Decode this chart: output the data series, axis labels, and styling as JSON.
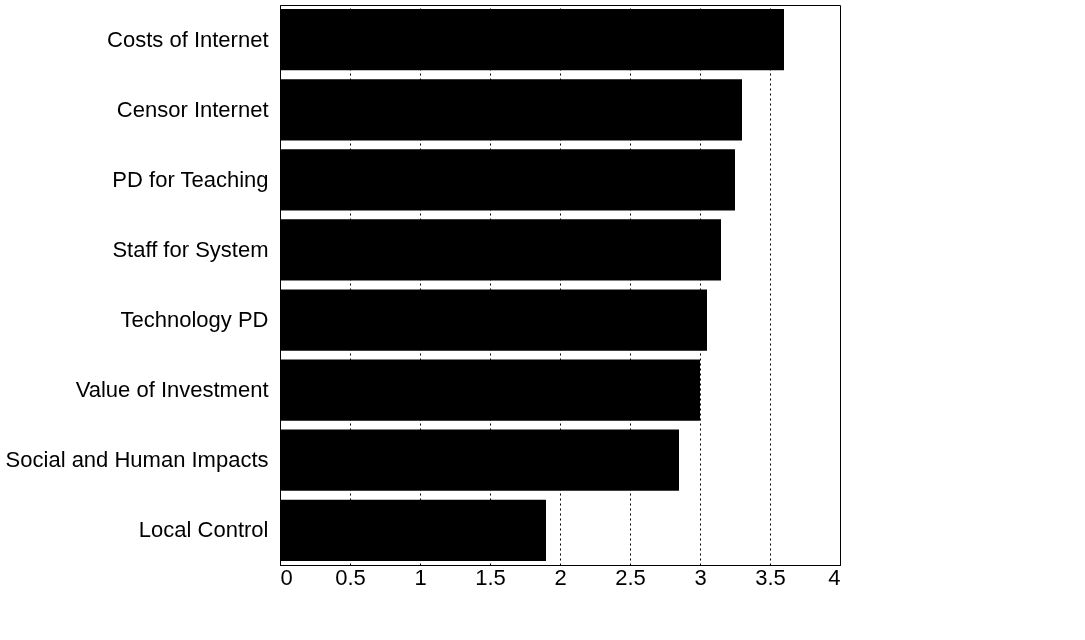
{
  "chart_data": {
    "type": "bar",
    "orientation": "horizontal",
    "categories": [
      "Costs of Internet",
      "Censor Internet",
      "PD for Teaching",
      "Staff for System",
      "Technology PD",
      "Value of Investment",
      "Social and Human Impacts",
      "Local Control"
    ],
    "values": [
      3.6,
      3.3,
      3.25,
      3.15,
      3.05,
      3.0,
      2.85,
      1.9
    ],
    "color": "#000000",
    "xlim": [
      0,
      4
    ],
    "xticks": [
      0,
      0.5,
      1,
      1.5,
      2,
      2.5,
      3,
      3.5,
      4
    ],
    "grid": "x"
  }
}
